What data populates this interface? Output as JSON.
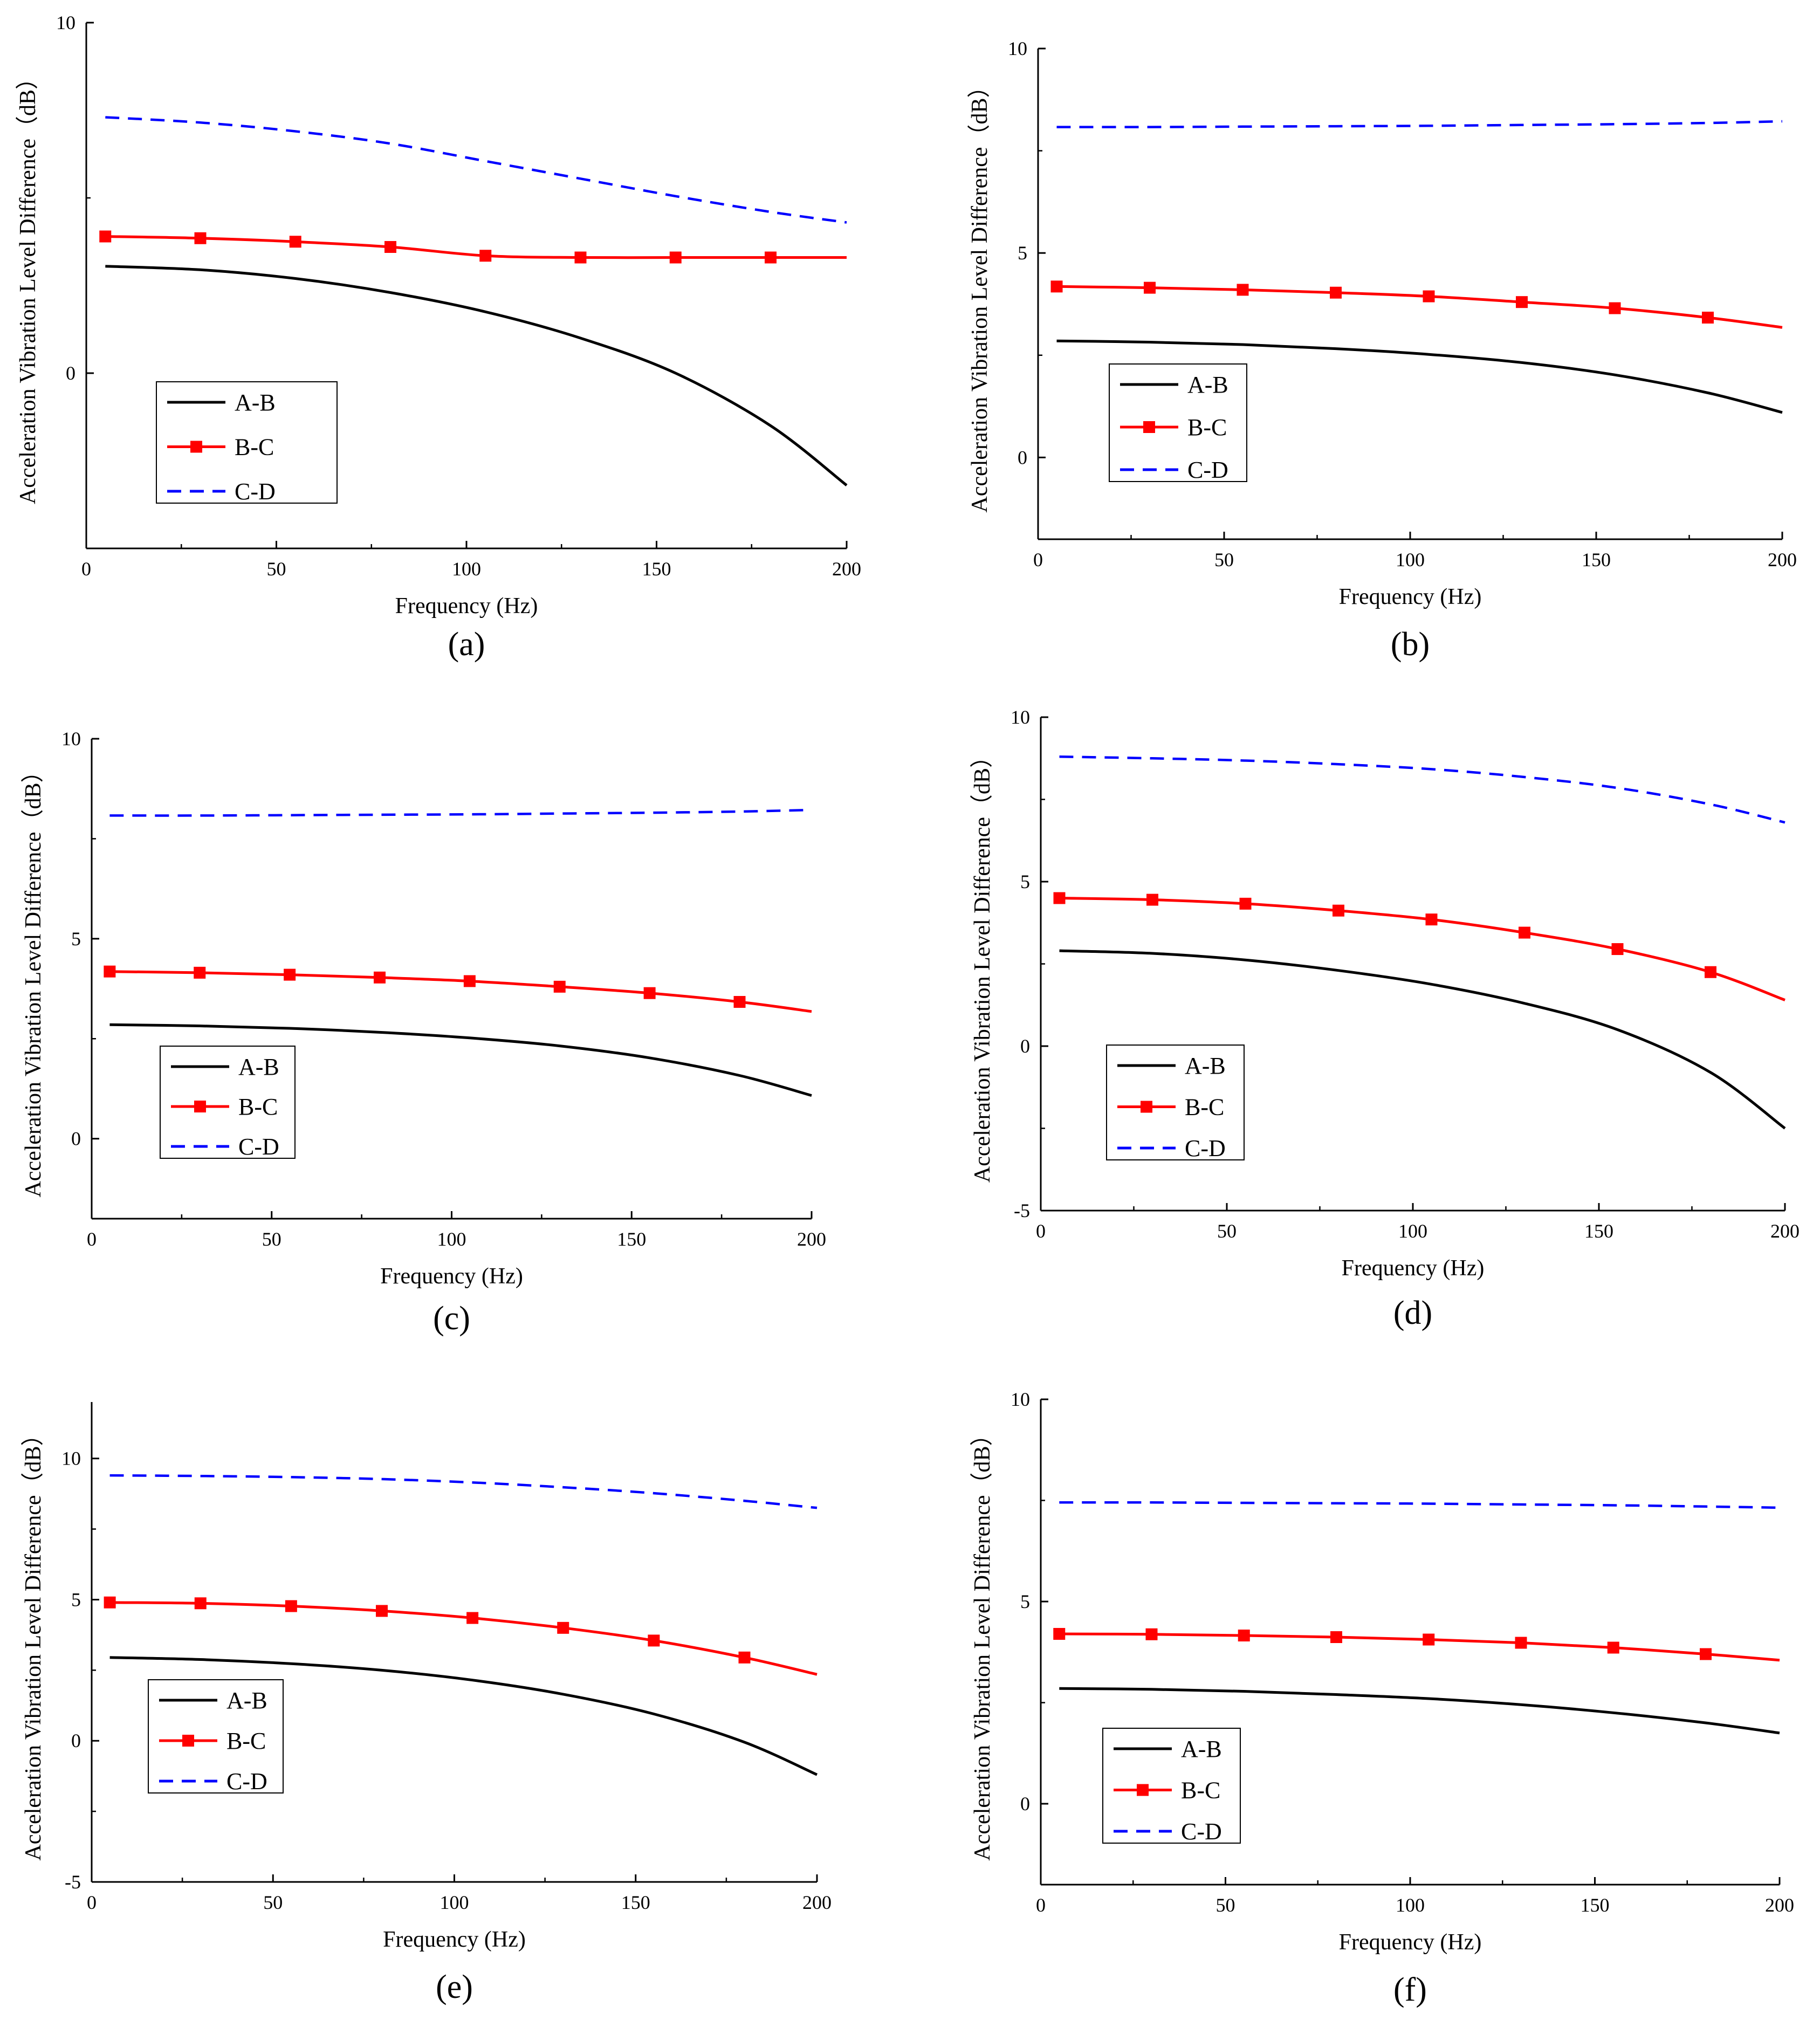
{
  "figure": {
    "legend_labels": [
      "A-B",
      "B-C",
      "C-D"
    ],
    "colors": {
      "A-B": "#000000",
      "B-C": "#ff0000",
      "C-D": "#0000ff",
      "axis": "#000000"
    }
  },
  "chart_data": [
    {
      "panel": "(a)",
      "type": "line",
      "xlabel": "Frequency (Hz)",
      "ylabel": "Acceleration Vibration Level Difference（dB）",
      "xlim": [
        0,
        200
      ],
      "ylim": [
        -5,
        10
      ],
      "xticks": [
        0,
        50,
        100,
        150,
        200
      ],
      "yticks": [
        0,
        10
      ],
      "legend": "lower-left",
      "markers_x": [
        5,
        30,
        55,
        80,
        105,
        130,
        155,
        180
      ],
      "series": [
        {
          "name": "A-B",
          "style": "solid",
          "marker": "none",
          "x": [
            5,
            30,
            55,
            80,
            105,
            130,
            155,
            180,
            200
          ],
          "y": [
            3.05,
            2.95,
            2.7,
            2.3,
            1.75,
            1.0,
            0.0,
            -1.5,
            -3.2
          ]
        },
        {
          "name": "B-C",
          "style": "solid",
          "marker": "square",
          "x": [
            5,
            30,
            55,
            80,
            105,
            130,
            155,
            180,
            200
          ],
          "y": [
            3.9,
            3.85,
            3.75,
            3.6,
            3.35,
            3.3,
            3.3,
            3.3,
            3.3
          ]
        },
        {
          "name": "C-D",
          "style": "dashed",
          "marker": "none",
          "x": [
            5,
            30,
            55,
            80,
            105,
            130,
            155,
            180,
            200
          ],
          "y": [
            7.3,
            7.15,
            6.9,
            6.55,
            6.05,
            5.55,
            5.05,
            4.6,
            4.3
          ]
        }
      ]
    },
    {
      "panel": "(b)",
      "type": "line",
      "xlabel": "Frequency (Hz)",
      "ylabel": "Acceleration Vibration Level Difference（dB）",
      "xlim": [
        0,
        200
      ],
      "ylim": [
        -2,
        10
      ],
      "xticks": [
        0,
        50,
        100,
        150,
        200
      ],
      "yticks": [
        0,
        5,
        10
      ],
      "legend": "lower-left",
      "markers_x": [
        5,
        30,
        55,
        80,
        105,
        130,
        155,
        180
      ],
      "series": [
        {
          "name": "A-B",
          "style": "solid",
          "marker": "none",
          "x": [
            5,
            30,
            55,
            80,
            105,
            130,
            155,
            180,
            200
          ],
          "y": [
            2.85,
            2.82,
            2.76,
            2.66,
            2.52,
            2.32,
            2.02,
            1.58,
            1.1
          ]
        },
        {
          "name": "B-C",
          "style": "solid",
          "marker": "square",
          "x": [
            5,
            30,
            55,
            80,
            105,
            130,
            155,
            180,
            200
          ],
          "y": [
            4.18,
            4.15,
            4.1,
            4.03,
            3.94,
            3.8,
            3.65,
            3.42,
            3.18
          ]
        },
        {
          "name": "C-D",
          "style": "dashed",
          "marker": "none",
          "x": [
            5,
            30,
            55,
            80,
            105,
            130,
            155,
            180,
            200
          ],
          "y": [
            8.08,
            8.08,
            8.09,
            8.1,
            8.11,
            8.13,
            8.15,
            8.18,
            8.22
          ]
        }
      ]
    },
    {
      "panel": "(c)",
      "type": "line",
      "xlabel": "Frequency (Hz)",
      "ylabel": "Acceleration Vibration Level Difference（dB）",
      "xlim": [
        0,
        200
      ],
      "ylim": [
        -2,
        10
      ],
      "xticks": [
        0,
        50,
        100,
        150,
        200
      ],
      "yticks": [
        0,
        5,
        10
      ],
      "legend": "lower-left",
      "markers_x": [
        5,
        30,
        55,
        80,
        105,
        130,
        155,
        180
      ],
      "series": [
        {
          "name": "A-B",
          "style": "solid",
          "marker": "none",
          "x": [
            5,
            30,
            55,
            80,
            105,
            130,
            155,
            180,
            200
          ],
          "y": [
            2.85,
            2.82,
            2.76,
            2.66,
            2.52,
            2.32,
            2.02,
            1.58,
            1.08
          ]
        },
        {
          "name": "B-C",
          "style": "solid",
          "marker": "square",
          "x": [
            5,
            30,
            55,
            80,
            105,
            130,
            155,
            180,
            200
          ],
          "y": [
            4.18,
            4.15,
            4.1,
            4.03,
            3.94,
            3.8,
            3.64,
            3.42,
            3.18
          ]
        },
        {
          "name": "C-D",
          "style": "dashed",
          "marker": "none",
          "x": [
            5,
            30,
            55,
            80,
            105,
            130,
            155,
            180,
            200
          ],
          "y": [
            8.08,
            8.08,
            8.09,
            8.1,
            8.11,
            8.13,
            8.15,
            8.18,
            8.22
          ]
        }
      ]
    },
    {
      "panel": "(d)",
      "type": "line",
      "xlabel": "Frequency (Hz)",
      "ylabel": "Acceleration Vibration Level Difference（dB）",
      "xlim": [
        0,
        200
      ],
      "ylim": [
        -5,
        10
      ],
      "xticks": [
        0,
        50,
        100,
        150,
        200
      ],
      "yticks": [
        -5,
        0,
        5,
        10
      ],
      "legend": "lower-left",
      "markers_x": [
        5,
        30,
        55,
        80,
        105,
        130,
        155,
        180
      ],
      "series": [
        {
          "name": "A-B",
          "style": "solid",
          "marker": "none",
          "x": [
            5,
            30,
            55,
            80,
            105,
            130,
            155,
            180,
            200
          ],
          "y": [
            2.9,
            2.82,
            2.62,
            2.3,
            1.88,
            1.3,
            0.5,
            -0.8,
            -2.5
          ]
        },
        {
          "name": "B-C",
          "style": "solid",
          "marker": "square",
          "x": [
            5,
            30,
            55,
            80,
            105,
            130,
            155,
            180,
            200
          ],
          "y": [
            4.5,
            4.45,
            4.33,
            4.12,
            3.85,
            3.45,
            2.95,
            2.25,
            1.4
          ]
        },
        {
          "name": "C-D",
          "style": "dashed",
          "marker": "none",
          "x": [
            5,
            30,
            55,
            80,
            105,
            130,
            155,
            180,
            200
          ],
          "y": [
            8.8,
            8.75,
            8.68,
            8.57,
            8.42,
            8.18,
            7.85,
            7.35,
            6.8
          ]
        }
      ]
    },
    {
      "panel": "(e)",
      "type": "line",
      "xlabel": "Frequency (Hz)",
      "ylabel": "Acceleration Vibration Level Difference（dB）",
      "xlim": [
        0,
        200
      ],
      "ylim": [
        -5,
        12
      ],
      "xticks": [
        0,
        50,
        100,
        150,
        200
      ],
      "yticks": [
        -5,
        0,
        5,
        10
      ],
      "legend": "lower-left",
      "markers_x": [
        5,
        30,
        55,
        80,
        105,
        130,
        155,
        180
      ],
      "series": [
        {
          "name": "A-B",
          "style": "solid",
          "marker": "none",
          "x": [
            5,
            30,
            55,
            80,
            105,
            130,
            155,
            180,
            200
          ],
          "y": [
            2.95,
            2.88,
            2.73,
            2.5,
            2.15,
            1.65,
            0.95,
            -0.05,
            -1.2
          ]
        },
        {
          "name": "B-C",
          "style": "solid",
          "marker": "square",
          "x": [
            5,
            30,
            55,
            80,
            105,
            130,
            155,
            180,
            200
          ],
          "y": [
            4.9,
            4.87,
            4.77,
            4.6,
            4.35,
            4.0,
            3.55,
            2.95,
            2.35
          ]
        },
        {
          "name": "C-D",
          "style": "dashed",
          "marker": "none",
          "x": [
            5,
            30,
            55,
            80,
            105,
            130,
            155,
            180,
            200
          ],
          "y": [
            9.4,
            9.38,
            9.34,
            9.27,
            9.15,
            8.98,
            8.77,
            8.5,
            8.25
          ]
        }
      ]
    },
    {
      "panel": "(f)",
      "type": "line",
      "xlabel": "Frequency (Hz)",
      "ylabel": "Acceleration Vibration Level Difference（dB）",
      "xlim": [
        0,
        200
      ],
      "ylim": [
        -2,
        10
      ],
      "xticks": [
        0,
        50,
        100,
        150,
        200
      ],
      "yticks": [
        0,
        5,
        10
      ],
      "legend": "lower-left",
      "markers_x": [
        5,
        30,
        55,
        80,
        105,
        130,
        155,
        180
      ],
      "series": [
        {
          "name": "A-B",
          "style": "solid",
          "marker": "none",
          "x": [
            5,
            30,
            55,
            80,
            105,
            130,
            155,
            180,
            200
          ],
          "y": [
            2.85,
            2.83,
            2.78,
            2.7,
            2.6,
            2.45,
            2.25,
            2.0,
            1.75
          ]
        },
        {
          "name": "B-C",
          "style": "solid",
          "marker": "square",
          "x": [
            5,
            30,
            55,
            80,
            105,
            130,
            155,
            180,
            200
          ],
          "y": [
            4.2,
            4.19,
            4.16,
            4.12,
            4.06,
            3.98,
            3.86,
            3.7,
            3.55
          ]
        },
        {
          "name": "C-D",
          "style": "dashed",
          "marker": "none",
          "x": [
            5,
            30,
            55,
            80,
            105,
            130,
            155,
            180,
            200
          ],
          "y": [
            7.45,
            7.45,
            7.44,
            7.43,
            7.42,
            7.4,
            7.38,
            7.35,
            7.32
          ]
        }
      ]
    }
  ]
}
